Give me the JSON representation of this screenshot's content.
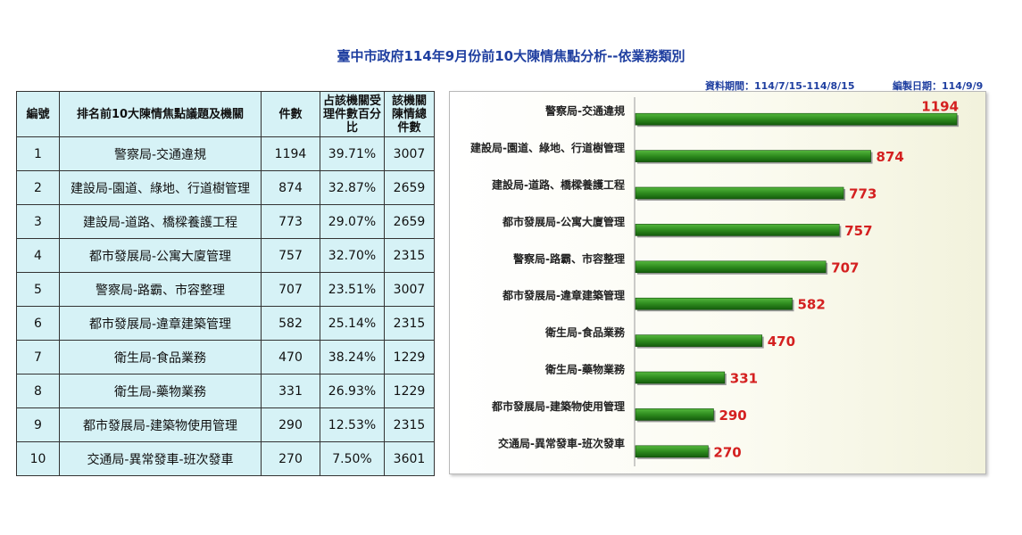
{
  "title": "臺中市政府114年9月份前10大陳情焦點分析--依業務類別",
  "meta": {
    "period": "資料期間：114/7/15-114/8/15",
    "date": "編製日期：114/9/9"
  },
  "table": {
    "headers": [
      "編號",
      "排名前10大陳情焦點議題及機關",
      "件數",
      "占該機關受理件數百分比",
      "該機關陳情總件數"
    ],
    "rows": [
      [
        "1",
        "警察局-交通違規",
        "1194",
        "39.71%",
        "3007"
      ],
      [
        "2",
        "建設局-園道、綠地、行道樹管理",
        "874",
        "32.87%",
        "2659"
      ],
      [
        "3",
        "建設局-道路、橋樑養護工程",
        "773",
        "29.07%",
        "2659"
      ],
      [
        "4",
        "都市發展局-公寓大廈管理",
        "757",
        "32.70%",
        "2315"
      ],
      [
        "5",
        "警察局-路霸、市容整理",
        "707",
        "23.51%",
        "3007"
      ],
      [
        "6",
        "都市發展局-違章建築管理",
        "582",
        "25.14%",
        "2315"
      ],
      [
        "7",
        "衛生局-食品業務",
        "470",
        "38.24%",
        "1229"
      ],
      [
        "8",
        "衛生局-藥物業務",
        "331",
        "26.93%",
        "1229"
      ],
      [
        "9",
        "都市發展局-建築物使用管理",
        "290",
        "12.53%",
        "2315"
      ],
      [
        "10",
        "交通局-異常發車-班次發車",
        "270",
        "7.50%",
        "3601"
      ]
    ]
  },
  "chart_data": {
    "type": "bar",
    "orientation": "horizontal",
    "categories": [
      "警察局-交通違規",
      "建設局-園道、綠地、行道樹管理",
      "建設局-道路、橋樑養護工程",
      "都市發展局-公寓大廈管理",
      "警察局-路霸、市容整理",
      "都市發展局-違章建築管理",
      "衛生局-食品業務",
      "衛生局-藥物業務",
      "都市發展局-建築物使用管理",
      "交通局-異常發車-班次發車"
    ],
    "values": [
      1194,
      874,
      773,
      757,
      707,
      582,
      470,
      331,
      290,
      270
    ],
    "xlim": [
      0,
      1300
    ],
    "grid": false,
    "legend": "none",
    "bar_color": "#2e8b1e",
    "label_color": "#d42020"
  }
}
